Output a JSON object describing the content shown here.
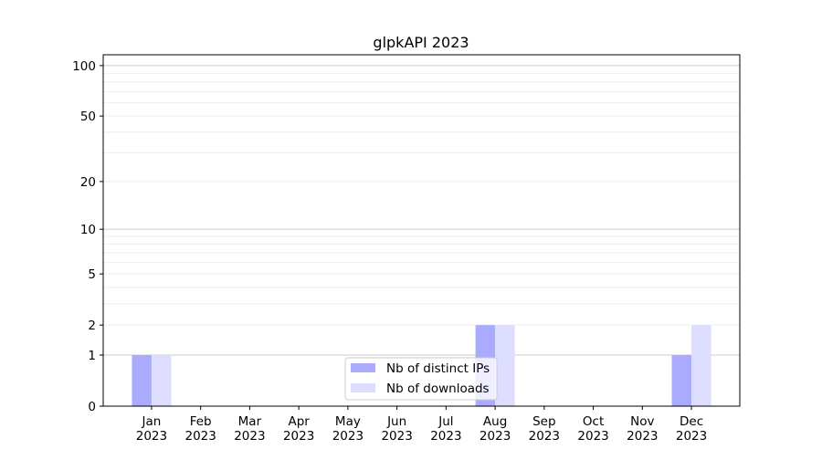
{
  "chart_data": {
    "type": "bar",
    "title": "glpkAPI 2023",
    "xlabel": "",
    "ylabel": "",
    "yscale": "log(1+y)",
    "ylim": [
      0,
      116
    ],
    "yticks": [
      0,
      1,
      2,
      5,
      10,
      20,
      50,
      100
    ],
    "grid": "horizontal, major and minor",
    "legend_position": "bottom-center",
    "categories": [
      "Jan\n2023",
      "Feb\n2023",
      "Mar\n2023",
      "Apr\n2023",
      "May\n2023",
      "Jun\n2023",
      "Jul\n2023",
      "Aug\n2023",
      "Sep\n2023",
      "Oct\n2023",
      "Nov\n2023",
      "Dec\n2023"
    ],
    "series": [
      {
        "name": "Nb of distinct IPs",
        "color": "#aaaaff",
        "values": [
          1,
          0,
          0,
          0,
          0,
          0,
          0,
          2,
          0,
          0,
          0,
          1
        ]
      },
      {
        "name": "Nb of downloads",
        "color": "#ddddff",
        "values": [
          1,
          0,
          0,
          0,
          0,
          0,
          0,
          2,
          0,
          0,
          0,
          2
        ]
      }
    ]
  }
}
